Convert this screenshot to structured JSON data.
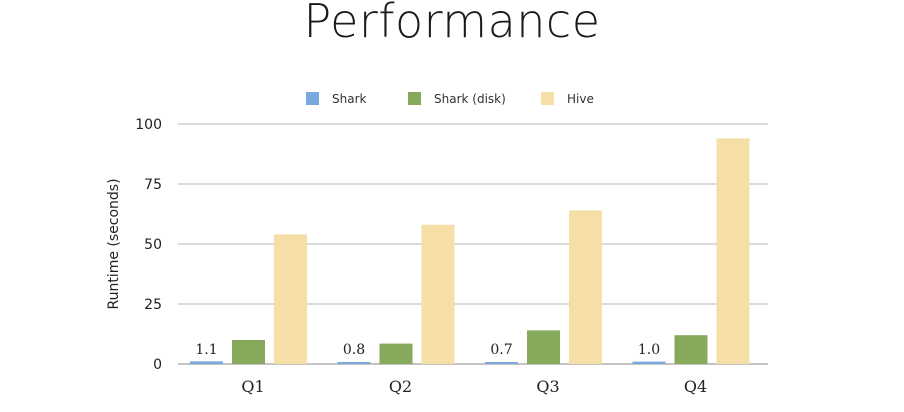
{
  "chart_data": {
    "type": "bar",
    "title": "Performance",
    "ylabel": "Runtime (seconds)",
    "xlabel": "",
    "ylim": [
      0,
      100
    ],
    "yticks": [
      0,
      25,
      50,
      75,
      100
    ],
    "grid": true,
    "legend_position": "top",
    "categories": [
      "Q1",
      "Q2",
      "Q3",
      "Q4"
    ],
    "series": [
      {
        "name": "Shark",
        "color": "#7aa9de",
        "values": [
          1.1,
          0.8,
          0.7,
          1.0
        ],
        "labels": [
          "1.1",
          "0.8",
          "0.7",
          "1.0"
        ]
      },
      {
        "name": "Shark (disk)",
        "color": "#87a95c",
        "values": [
          10,
          8.5,
          14,
          12
        ]
      },
      {
        "name": "Hive",
        "color": "#f5dfa6",
        "values": [
          54,
          58,
          64,
          94
        ]
      }
    ]
  }
}
